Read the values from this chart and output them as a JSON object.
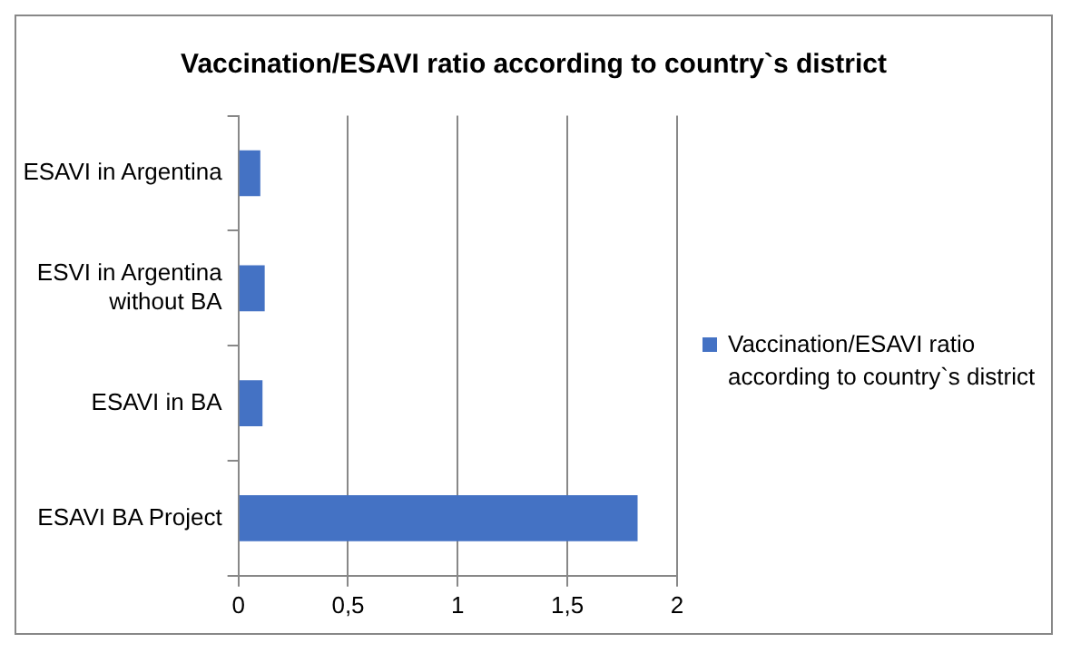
{
  "chart_data": {
    "type": "bar",
    "orientation": "horizontal",
    "title": "Vaccination/ESAVI ratio according to country`s district",
    "categories": [
      "ESAVI in Argentina",
      "ESVI in Argentina without BA",
      "ESAVI in BA",
      "ESAVI BA Project"
    ],
    "series": [
      {
        "name": "Vaccination/ESAVI ratio according to country`s district",
        "color": "#4472c4",
        "values": [
          0.1,
          0.12,
          0.11,
          1.82
        ]
      }
    ],
    "xlim": [
      0,
      2
    ],
    "xticks": [
      0,
      {
        "value": 0.5,
        "label": "0,5"
      },
      1,
      {
        "value": 1.5,
        "label": "1,5"
      },
      2
    ],
    "grid": "x",
    "legend": "right"
  }
}
